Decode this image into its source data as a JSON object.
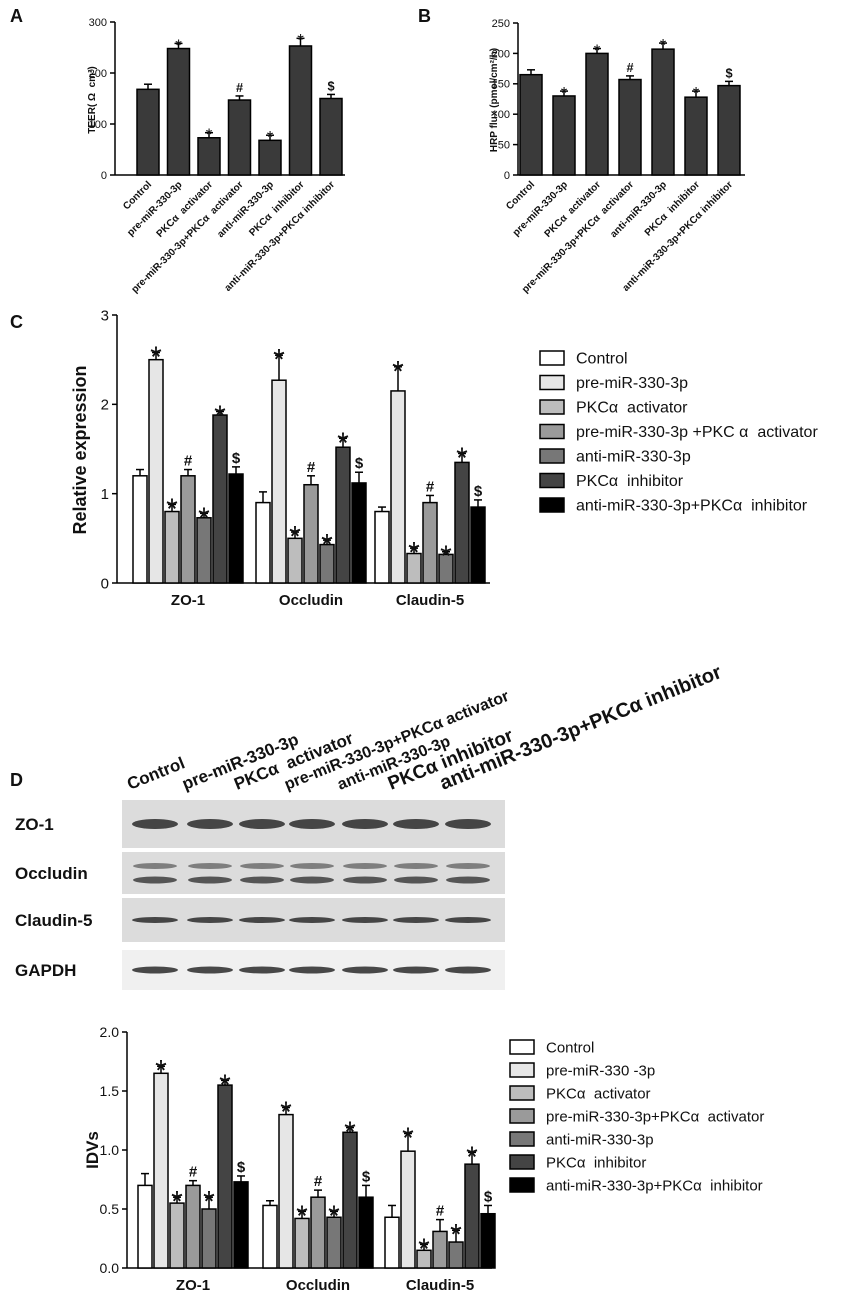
{
  "panel_labels": [
    "A",
    "B",
    "C",
    "D"
  ],
  "chart_data": [
    {
      "type": "bar",
      "ylabel": "TEER( Ω  cm²)",
      "categories": [
        "Control",
        "pre-miR-330-3p",
        "PKCα  activator",
        "pre-miR-330-3p+PKCα  activator",
        "anti-miR-330-3p",
        "PKCα  inhibitor",
        "anti-miR-330-3p+PKCα inhibitor"
      ],
      "values": [
        168,
        248,
        73,
        147,
        68,
        253,
        150
      ],
      "errors": [
        10,
        10,
        10,
        8,
        10,
        15,
        8
      ],
      "markers": [
        null,
        "*",
        "*",
        "#",
        "*",
        "*",
        "$"
      ],
      "color": "#3a3a3a",
      "ylim": [
        0,
        300
      ],
      "yticks": [
        0,
        100,
        200,
        300
      ]
    },
    {
      "type": "bar",
      "ylabel": "HRP flux (pmol/cm²/h)",
      "categories": [
        "Control",
        "pre-miR-330-3p",
        "PKCα  activator",
        "pre-miR-330-3p+PKCα  activator",
        "anti-miR-330-3p",
        "PKCα  inhibitor",
        "anti-miR-330-3p+PKCα inhibitor"
      ],
      "values": [
        165,
        130,
        200,
        157,
        207,
        128,
        147
      ],
      "errors": [
        8,
        8,
        8,
        6,
        10,
        10,
        7
      ],
      "markers": [
        null,
        "*",
        "*",
        "#",
        "*",
        "*",
        "$"
      ],
      "color": "#3a3a3a",
      "ylim": [
        0,
        250
      ],
      "yticks": [
        0,
        50,
        100,
        150,
        200,
        250
      ]
    },
    {
      "type": "bar",
      "ylabel": "Relative expression",
      "categories": [
        "ZO-1",
        "Occludin",
        "Claudin-5"
      ],
      "series": [
        {
          "name": "Control",
          "color": "#ffffff",
          "values": [
            1.2,
            0.9,
            0.8
          ],
          "errors": [
            0.07,
            0.12,
            0.05
          ],
          "markers": [
            null,
            null,
            null
          ]
        },
        {
          "name": "pre-miR-330-3p",
          "color": "#e6e6e6",
          "values": [
            2.5,
            2.27,
            2.15
          ],
          "errors": [
            0.08,
            0.28,
            0.27
          ],
          "markers": [
            "*",
            "*",
            "*"
          ]
        },
        {
          "name": "PKCα  activator",
          "color": "#bdbdbd",
          "values": [
            0.8,
            0.5,
            0.33
          ],
          "errors": [
            0.08,
            0.07,
            0.06
          ],
          "markers": [
            "*",
            "*",
            "*"
          ]
        },
        {
          "name": "pre-miR-330-3p +PKC α  activator",
          "color": "#9a9a9a",
          "values": [
            1.2,
            1.1,
            0.9
          ],
          "errors": [
            0.07,
            0.1,
            0.08
          ],
          "markers": [
            "#",
            "#",
            "#"
          ]
        },
        {
          "name": "anti-miR-330-3p",
          "color": "#777777",
          "values": [
            0.73,
            0.43,
            0.32
          ],
          "errors": [
            0.05,
            0.05,
            0.03
          ],
          "markers": [
            "*",
            "*",
            "*"
          ]
        },
        {
          "name": "PKCα  inhibitor",
          "color": "#444444",
          "values": [
            1.88,
            1.52,
            1.35
          ],
          "errors": [
            0.04,
            0.1,
            0.1
          ],
          "markers": [
            "*",
            "*",
            "*"
          ]
        },
        {
          "name": "anti-miR-330-3p+PKCα  inhibitor",
          "color": "#000000",
          "values": [
            1.22,
            1.12,
            0.85
          ],
          "errors": [
            0.08,
            0.12,
            0.08
          ],
          "markers": [
            "$",
            "$",
            "$"
          ]
        }
      ],
      "ylim": [
        0,
        3
      ],
      "yticks": [
        0,
        1,
        2,
        3
      ]
    },
    {
      "type": "bar",
      "ylabel": "IDVs",
      "categories": [
        "ZO-1",
        "Occludin",
        "Claudin-5"
      ],
      "series": [
        {
          "name": "Control",
          "color": "#ffffff",
          "values": [
            0.7,
            0.53,
            0.43
          ],
          "errors": [
            0.1,
            0.04,
            0.1
          ],
          "markers": [
            null,
            null,
            null
          ]
        },
        {
          "name": "pre-miR-330 -3p",
          "color": "#e6e6e6",
          "values": [
            1.65,
            1.3,
            0.99
          ],
          "errors": [
            0.06,
            0.06,
            0.15
          ],
          "markers": [
            "*",
            "*",
            "*"
          ]
        },
        {
          "name": "PKCα  activator",
          "color": "#bdbdbd",
          "values": [
            0.55,
            0.42,
            0.15
          ],
          "errors": [
            0.05,
            0.06,
            0.05
          ],
          "markers": [
            "*",
            "*",
            "*"
          ]
        },
        {
          "name": "pre-miR-330-3p+PKCα  activator",
          "color": "#9a9a9a",
          "values": [
            0.7,
            0.6,
            0.31
          ],
          "errors": [
            0.04,
            0.06,
            0.1
          ],
          "markers": [
            "#",
            "#",
            "#"
          ]
        },
        {
          "name": "anti-miR-330-3p",
          "color": "#777777",
          "values": [
            0.5,
            0.43,
            0.22
          ],
          "errors": [
            0.1,
            0.05,
            0.1
          ],
          "markers": [
            "*",
            "*",
            "*"
          ]
        },
        {
          "name": "PKCα  inhibitor",
          "color": "#444444",
          "values": [
            1.55,
            1.15,
            0.88
          ],
          "errors": [
            0.04,
            0.04,
            0.1
          ],
          "markers": [
            "*",
            "*",
            "*"
          ]
        },
        {
          "name": "anti-miR-330-3p+PKCα  inhibitor",
          "color": "#000000",
          "values": [
            0.73,
            0.6,
            0.46
          ],
          "errors": [
            0.05,
            0.1,
            0.07
          ],
          "markers": [
            "$",
            "$",
            "$"
          ]
        }
      ],
      "ylim": [
        0,
        2
      ],
      "yticks": [
        {
          "value": 0,
          "label": "0.0"
        },
        {
          "value": 0.5,
          "label": "0.5"
        },
        {
          "value": 1,
          "label": "1.0"
        },
        {
          "value": 1.5,
          "label": "1.5"
        },
        {
          "value": 2,
          "label": "2.0"
        }
      ]
    }
  ],
  "blot": {
    "lanes": [
      "Control",
      "pre-miR-330-3p",
      "PKCα  activator",
      "pre-miR-330-3p+PKCα activator",
      "anti-miR-330-3p",
      "PKCα inhibitor",
      "anti-miR-330-3p+PKCα inhibitor"
    ],
    "rows": [
      "ZO-1",
      "Occludin",
      "Claudin-5",
      "GAPDH"
    ]
  }
}
